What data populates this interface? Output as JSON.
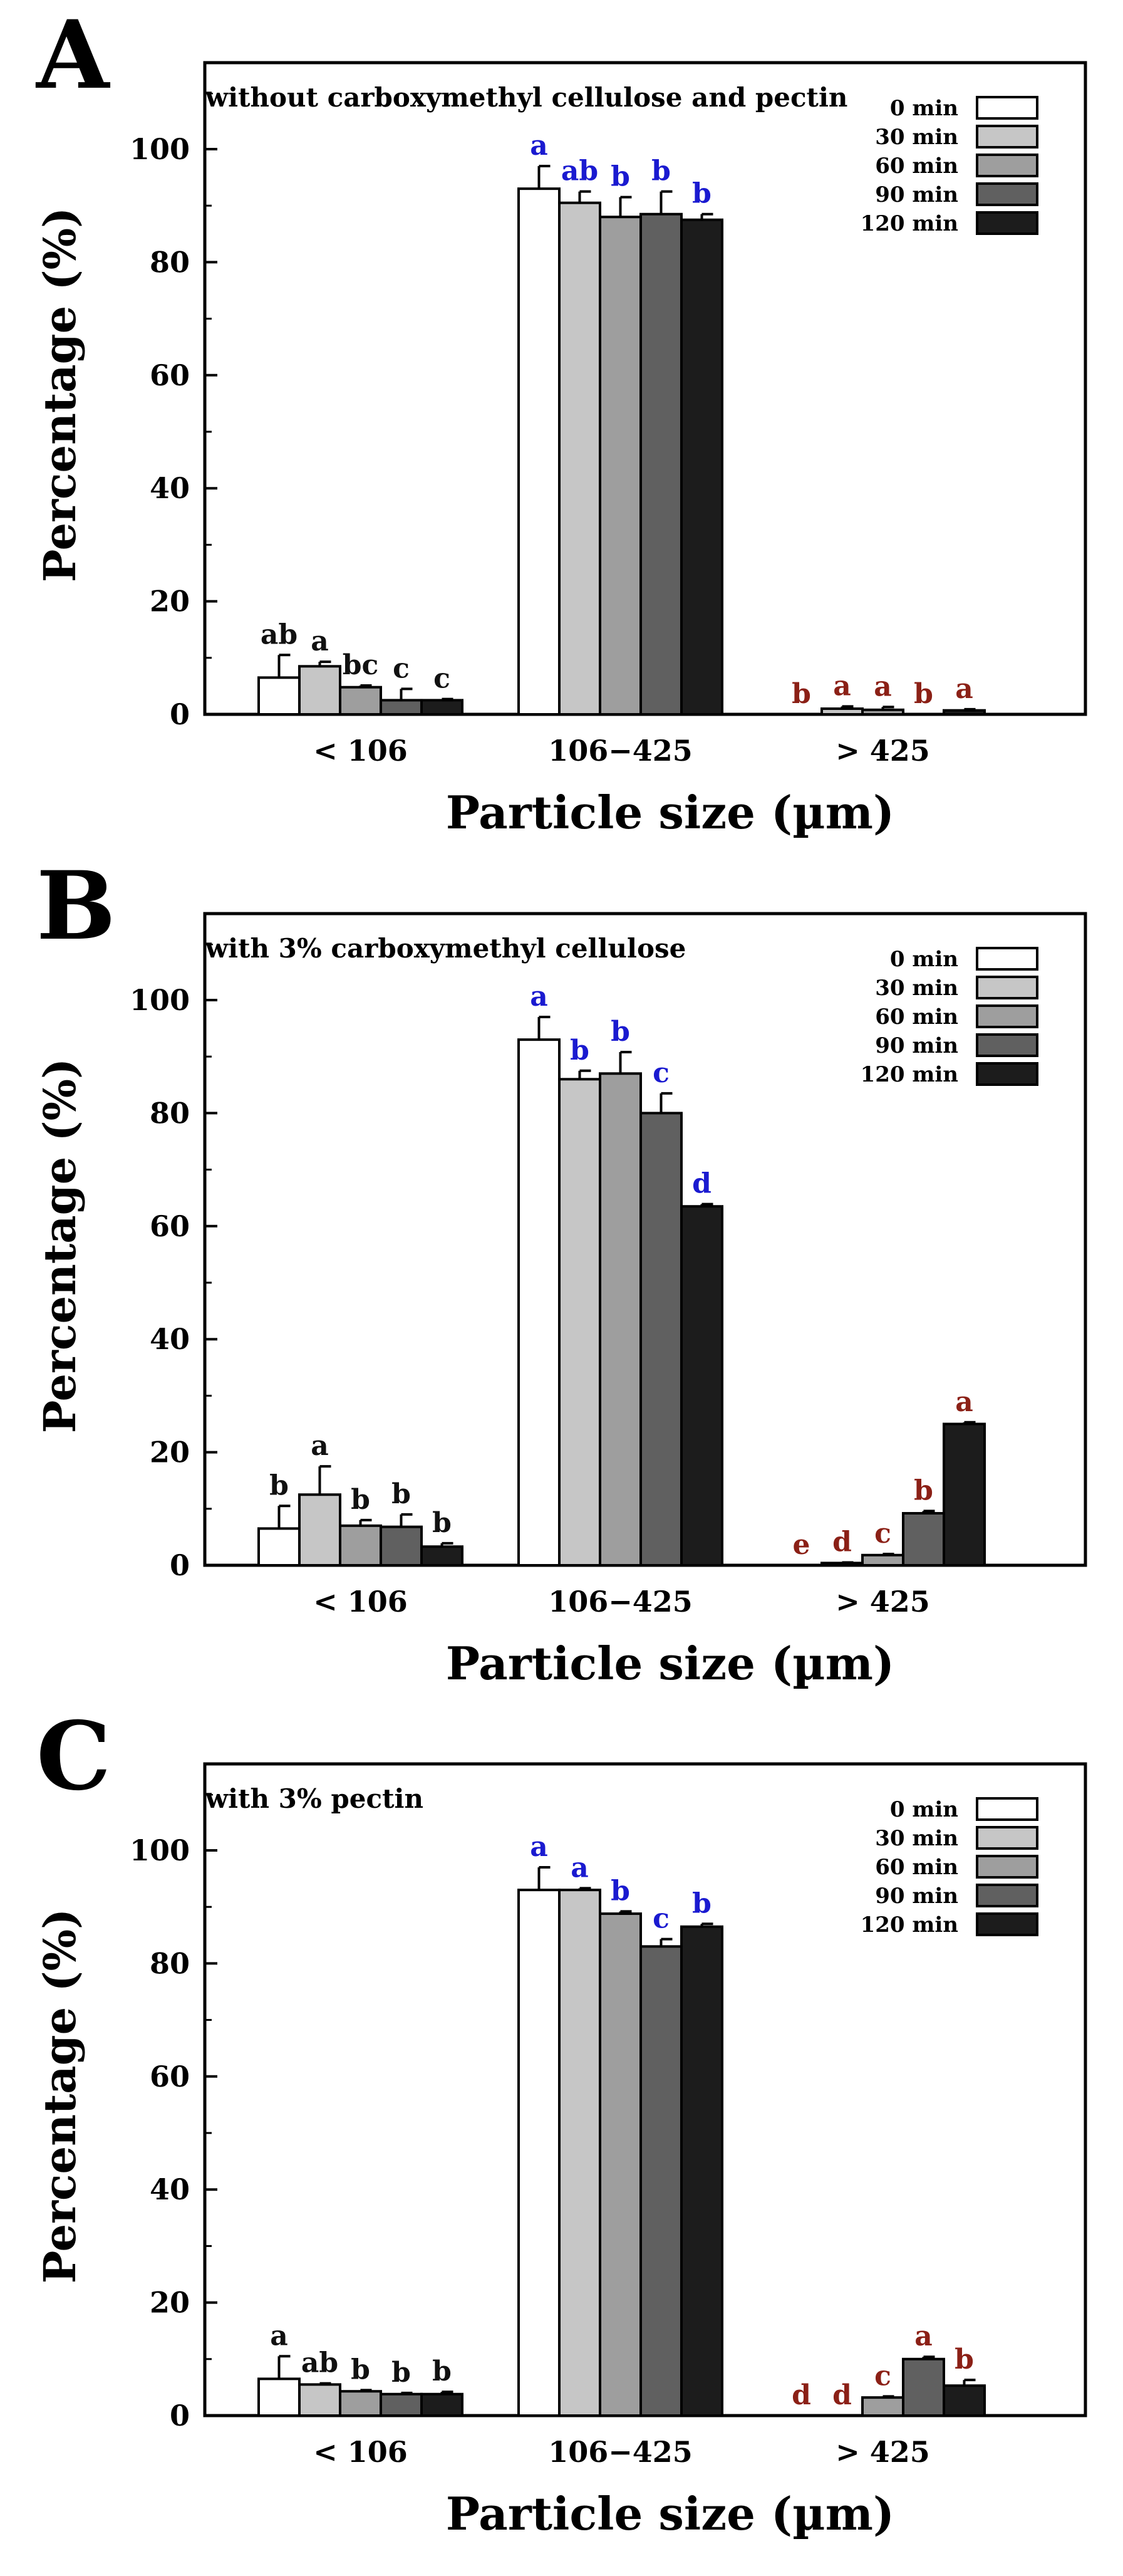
{
  "figure": {
    "colors": {
      "series": [
        "#ffffff",
        "#c6c6c6",
        "#9e9e9e",
        "#606060",
        "#1c1c1c"
      ],
      "letters_low": "#111111",
      "letters_mid": "#1a1ad0",
      "letters_high": "#8b2016",
      "axis": "#000000"
    }
  },
  "chart_data": [
    {
      "panel": "A",
      "type": "bar",
      "title": "without carboxymethyl cellulose and pectin",
      "xlabel": "Particle size (µm)",
      "ylabel": "Percentage (%)",
      "ylim": [
        0,
        115
      ],
      "yticks": [
        "0",
        "20",
        "40",
        "60",
        "80",
        "100"
      ],
      "categories": [
        "< 106",
        "106−425",
        "> 425"
      ],
      "legend_position": "top-right",
      "series": [
        {
          "name": "0 min",
          "values": [
            6.5,
            93.0,
            0.0
          ],
          "errors": [
            4.0,
            4.0,
            0.0
          ],
          "letters": [
            "ab",
            "a",
            "b"
          ]
        },
        {
          "name": "30 min",
          "values": [
            8.5,
            90.5,
            1.0
          ],
          "errors": [
            0.8,
            2.0,
            0.4
          ],
          "letters": [
            "a",
            "ab",
            "a"
          ]
        },
        {
          "name": "60 min",
          "values": [
            4.8,
            88.0,
            0.8
          ],
          "errors": [
            0.3,
            3.5,
            0.5
          ],
          "letters": [
            "bc",
            "b",
            "a"
          ]
        },
        {
          "name": "90 min",
          "values": [
            2.5,
            88.5,
            0.0
          ],
          "errors": [
            2.0,
            4.0,
            0.0
          ],
          "letters": [
            "c",
            "b",
            "b"
          ]
        },
        {
          "name": "120 min",
          "values": [
            2.5,
            87.5,
            0.7
          ],
          "errors": [
            0.2,
            1.0,
            0.2
          ],
          "letters": [
            "c",
            "b",
            "a"
          ]
        }
      ]
    },
    {
      "panel": "B",
      "type": "bar",
      "title": "with 3% carboxymethyl cellulose",
      "xlabel": "Particle size (µm)",
      "ylabel": "Percentage (%)",
      "ylim": [
        0,
        115
      ],
      "yticks": [
        "0",
        "20",
        "40",
        "60",
        "80",
        "100"
      ],
      "categories": [
        "< 106",
        "106−425",
        "> 425"
      ],
      "legend_position": "top-right",
      "series": [
        {
          "name": "0 min",
          "values": [
            6.5,
            93.0,
            0.0
          ],
          "errors": [
            4.0,
            4.0,
            0.0
          ],
          "letters": [
            "b",
            "a",
            "e"
          ]
        },
        {
          "name": "30 min",
          "values": [
            12.5,
            86.0,
            0.4
          ],
          "errors": [
            5.0,
            1.5,
            0.1
          ],
          "letters": [
            "a",
            "b",
            "d"
          ]
        },
        {
          "name": "60 min",
          "values": [
            7.0,
            87.0,
            1.8
          ],
          "errors": [
            1.0,
            3.8,
            0.2
          ],
          "letters": [
            "b",
            "b",
            "c"
          ]
        },
        {
          "name": "90 min",
          "values": [
            6.8,
            80.0,
            9.2
          ],
          "errors": [
            2.2,
            3.5,
            0.4
          ],
          "letters": [
            "b",
            "c",
            "b"
          ]
        },
        {
          "name": "120 min",
          "values": [
            3.3,
            63.5,
            25.0
          ],
          "errors": [
            0.6,
            0.4,
            0.3
          ],
          "letters": [
            "b",
            "d",
            "a"
          ]
        }
      ]
    },
    {
      "panel": "C",
      "type": "bar",
      "title": "with 3% pectin",
      "xlabel": "Particle size (µm)",
      "ylabel": "Percentage (%)",
      "ylim": [
        0,
        115
      ],
      "yticks": [
        "0",
        "20",
        "40",
        "60",
        "80",
        "100"
      ],
      "categories": [
        "< 106",
        "106−425",
        "> 425"
      ],
      "legend_position": "top-right",
      "series": [
        {
          "name": "0 min",
          "values": [
            6.5,
            93.0,
            0.0
          ],
          "errors": [
            4.0,
            4.0,
            0.0
          ],
          "letters": [
            "a",
            "a",
            "d"
          ]
        },
        {
          "name": "30 min",
          "values": [
            5.5,
            93.0,
            0.0
          ],
          "errors": [
            0.2,
            0.3,
            0.0
          ],
          "letters": [
            "ab",
            "a",
            "d"
          ]
        },
        {
          "name": "60 min",
          "values": [
            4.3,
            88.8,
            3.2
          ],
          "errors": [
            0.2,
            0.4,
            0.2
          ],
          "letters": [
            "b",
            "b",
            "c"
          ]
        },
        {
          "name": "90 min",
          "values": [
            3.8,
            83.0,
            10.0
          ],
          "errors": [
            0.2,
            1.3,
            0.4
          ],
          "letters": [
            "b",
            "c",
            "a"
          ]
        },
        {
          "name": "120 min",
          "values": [
            3.8,
            86.5,
            5.3
          ],
          "errors": [
            0.4,
            0.5,
            1.0
          ],
          "letters": [
            "b",
            "b",
            "b"
          ]
        }
      ]
    }
  ]
}
